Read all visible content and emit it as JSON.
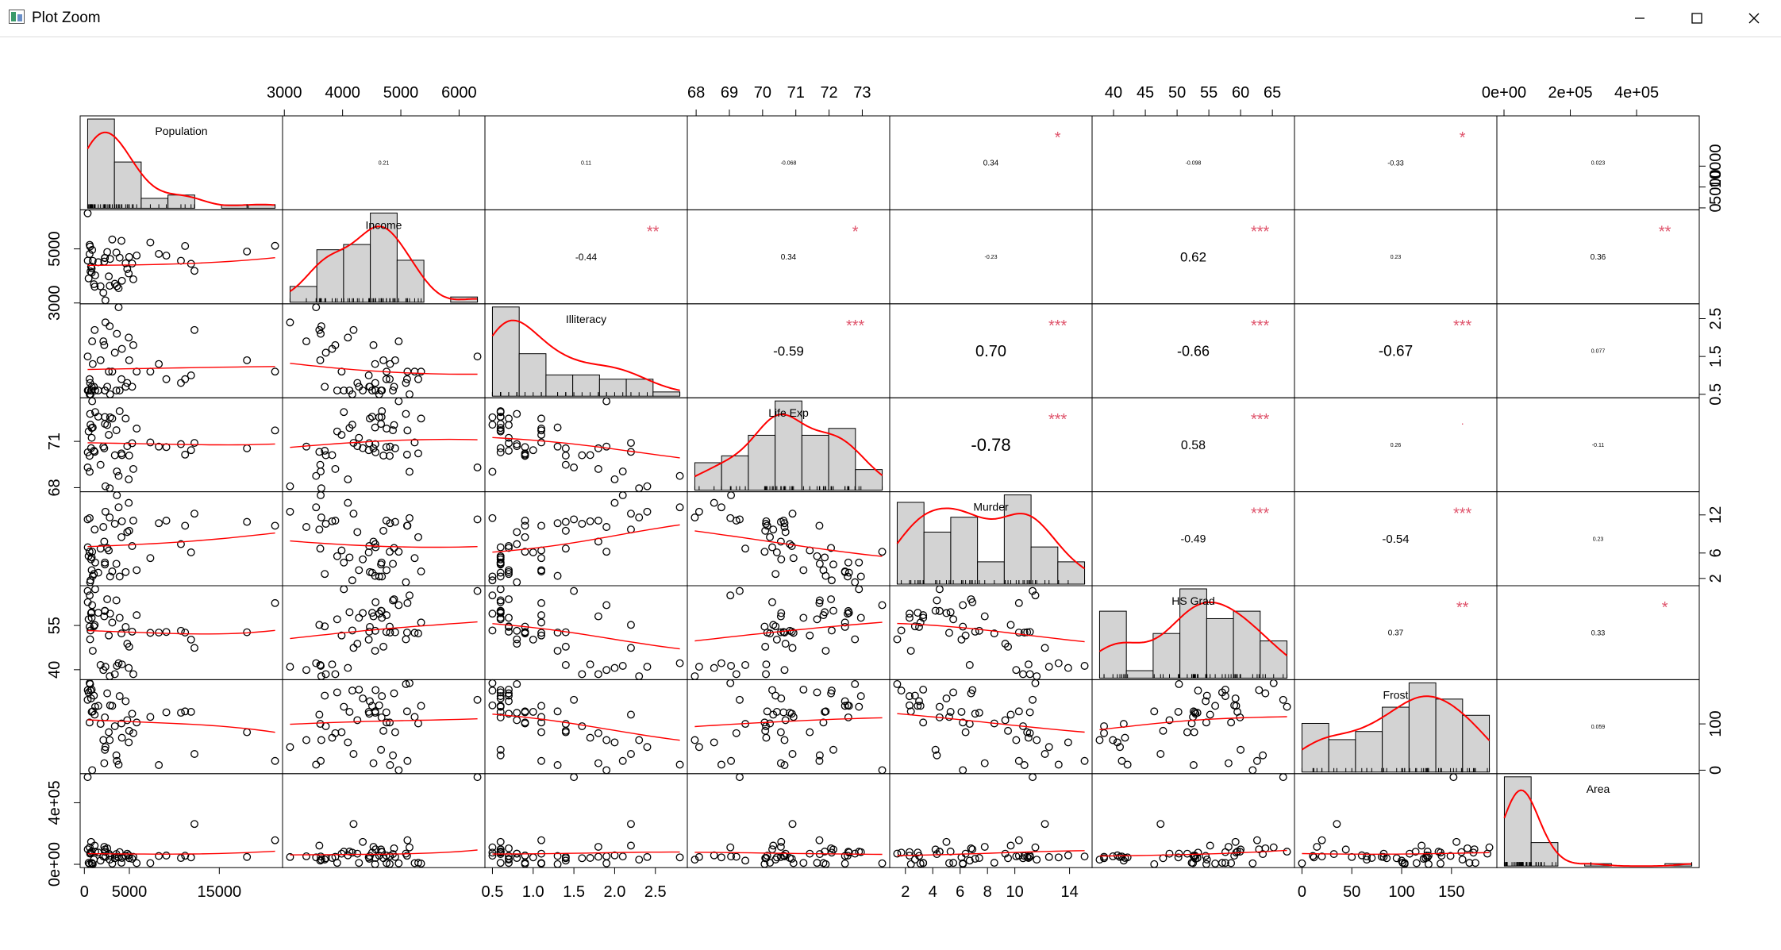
{
  "window": {
    "title": "Plot Zoom",
    "controls": [
      "minimize",
      "maximize",
      "close"
    ],
    "icons": {
      "app": "plot-zoom-app-icon",
      "minimize": "minimize-icon",
      "maximize": "maximize-icon",
      "close": "close-icon"
    }
  },
  "colors": {
    "fit": "#ff0000",
    "stars": "#df536b",
    "hist_fill": "#d3d3d3",
    "points": "#000000"
  },
  "chart_data": {
    "type": "scatter",
    "variables": [
      "Population",
      "Income",
      "Illiteracy",
      "Life Exp",
      "Murder",
      "HS Grad",
      "Frost",
      "Area"
    ],
    "diagonal_labels": [
      "Population",
      "Income",
      "Illiteracy",
      "Life Exp",
      "Murder",
      "HS Grad",
      "Frost",
      "Area"
    ],
    "ranges": [
      [
        365,
        21198
      ],
      [
        3098,
        6315
      ],
      [
        0.5,
        2.8
      ],
      [
        67.96,
        73.6
      ],
      [
        1.4,
        15.1
      ],
      [
        37.8,
        67.3
      ],
      [
        0,
        188
      ],
      [
        1049,
        566432
      ]
    ],
    "ticks": {
      "top": [
        {
          "var": 1,
          "values": [
            3000,
            4000,
            5000,
            6000
          ],
          "labels": [
            "3000",
            "4000",
            "5000",
            "6000"
          ]
        },
        {
          "var": 3,
          "values": [
            68,
            69,
            70,
            71,
            72,
            73
          ],
          "labels": [
            "68",
            "69",
            "70",
            "71",
            "72",
            "73"
          ]
        },
        {
          "var": 5,
          "values": [
            40,
            45,
            50,
            55,
            60,
            65
          ],
          "labels": [
            "40",
            "45",
            "50",
            "55",
            "60",
            "65"
          ]
        },
        {
          "var": 7,
          "values": [
            0,
            200000,
            400000
          ],
          "labels": [
            "0e+00",
            "2e+05",
            "4e+05"
          ]
        }
      ],
      "bottom": [
        {
          "var": 0,
          "values": [
            0,
            5000,
            15000
          ],
          "labels": [
            "0",
            "5000",
            "15000"
          ]
        },
        {
          "var": 2,
          "values": [
            0.5,
            1.0,
            1.5,
            2.0,
            2.5
          ],
          "labels": [
            "0.5",
            "1.0",
            "1.5",
            "2.0",
            "2.5"
          ]
        },
        {
          "var": 4,
          "values": [
            2,
            4,
            6,
            8,
            10,
            14
          ],
          "labels": [
            "2",
            "4",
            "6",
            "8",
            "10",
            "14"
          ]
        },
        {
          "var": 6,
          "values": [
            0,
            50,
            100,
            150
          ],
          "labels": [
            "0",
            "50",
            "100",
            "150"
          ]
        }
      ],
      "left": [
        {
          "var": 1,
          "values": [
            3000,
            5000
          ],
          "labels": [
            "3000",
            "5000"
          ]
        },
        {
          "var": 3,
          "values": [
            68,
            71
          ],
          "labels": [
            "68",
            "71"
          ]
        },
        {
          "var": 5,
          "values": [
            40,
            55
          ],
          "labels": [
            "40",
            "55"
          ]
        },
        {
          "var": 7,
          "values": [
            0,
            400000
          ],
          "labels": [
            "0e+00",
            "4e+05"
          ]
        }
      ],
      "right": [
        {
          "var": 0,
          "values": [
            0,
            5000,
            10000
          ],
          "labels": [
            "0",
            "5000",
            "10000"
          ]
        },
        {
          "var": 2,
          "values": [
            0.5,
            1.5,
            2.5
          ],
          "labels": [
            "0.5",
            "1.5",
            "2.5"
          ]
        },
        {
          "var": 4,
          "values": [
            2,
            6,
            12
          ],
          "labels": [
            "2",
            "6",
            "12"
          ]
        },
        {
          "var": 6,
          "values": [
            0,
            100
          ],
          "labels": [
            "0",
            "100"
          ]
        }
      ]
    },
    "correlations": [
      {
        "row": 0,
        "col": 1,
        "r": "0.21",
        "stars": ""
      },
      {
        "row": 0,
        "col": 2,
        "r": "0.11",
        "stars": ""
      },
      {
        "row": 0,
        "col": 3,
        "r": "-0.068",
        "stars": ""
      },
      {
        "row": 0,
        "col": 4,
        "r": "0.34",
        "stars": "*"
      },
      {
        "row": 0,
        "col": 5,
        "r": "-0.098",
        "stars": ""
      },
      {
        "row": 0,
        "col": 6,
        "r": "-0.33",
        "stars": "*"
      },
      {
        "row": 0,
        "col": 7,
        "r": "0.023",
        "stars": ""
      },
      {
        "row": 1,
        "col": 2,
        "r": "-0.44",
        "stars": "**"
      },
      {
        "row": 1,
        "col": 3,
        "r": "0.34",
        "stars": "*"
      },
      {
        "row": 1,
        "col": 4,
        "r": "-0.23",
        "stars": ""
      },
      {
        "row": 1,
        "col": 5,
        "r": "0.62",
        "stars": "***"
      },
      {
        "row": 1,
        "col": 6,
        "r": "0.23",
        "stars": ""
      },
      {
        "row": 1,
        "col": 7,
        "r": "0.36",
        "stars": "**"
      },
      {
        "row": 2,
        "col": 3,
        "r": "-0.59",
        "stars": "***"
      },
      {
        "row": 2,
        "col": 4,
        "r": "0.70",
        "stars": "***"
      },
      {
        "row": 2,
        "col": 5,
        "r": "-0.66",
        "stars": "***"
      },
      {
        "row": 2,
        "col": 6,
        "r": "-0.67",
        "stars": "***"
      },
      {
        "row": 2,
        "col": 7,
        "r": "0.077",
        "stars": ""
      },
      {
        "row": 3,
        "col": 4,
        "r": "-0.78",
        "stars": "***"
      },
      {
        "row": 3,
        "col": 5,
        "r": "0.58",
        "stars": "***"
      },
      {
        "row": 3,
        "col": 6,
        "r": "0.26",
        "stars": "."
      },
      {
        "row": 3,
        "col": 7,
        "r": "-0.11",
        "stars": ""
      },
      {
        "row": 4,
        "col": 5,
        "r": "-0.49",
        "stars": "***"
      },
      {
        "row": 4,
        "col": 6,
        "r": "-0.54",
        "stars": "***"
      },
      {
        "row": 4,
        "col": 7,
        "r": "0.23",
        "stars": ""
      },
      {
        "row": 5,
        "col": 6,
        "r": "0.37",
        "stars": "**"
      },
      {
        "row": 5,
        "col": 7,
        "r": "0.33",
        "stars": "*"
      },
      {
        "row": 6,
        "col": 7,
        "r": "0.059",
        "stars": ""
      }
    ],
    "observations": [
      [
        3615,
        3624,
        2.1,
        69.05,
        15.1,
        41.3,
        20,
        50708
      ],
      [
        365,
        6315,
        1.5,
        69.31,
        11.3,
        66.7,
        152,
        566432
      ],
      [
        2212,
        4530,
        1.8,
        70.55,
        7.8,
        58.1,
        15,
        113417
      ],
      [
        2110,
        3378,
        1.9,
        70.66,
        10.1,
        39.9,
        65,
        51945
      ],
      [
        21198,
        5114,
        1.1,
        71.71,
        10.3,
        62.6,
        20,
        156361
      ],
      [
        2541,
        4884,
        0.7,
        72.06,
        6.8,
        63.9,
        166,
        103766
      ],
      [
        3100,
        5348,
        1.1,
        72.48,
        3.1,
        56.0,
        139,
        4862
      ],
      [
        579,
        4809,
        0.9,
        70.06,
        6.2,
        54.6,
        103,
        1982
      ],
      [
        8277,
        4815,
        1.3,
        70.66,
        10.7,
        52.6,
        11,
        54090
      ],
      [
        4931,
        4091,
        2.0,
        68.54,
        13.9,
        40.6,
        60,
        58073
      ],
      [
        868,
        4963,
        1.9,
        73.6,
        6.2,
        61.9,
        0,
        6425
      ],
      [
        813,
        4119,
        0.6,
        71.87,
        5.3,
        59.5,
        126,
        82677
      ],
      [
        11197,
        5107,
        0.9,
        70.14,
        10.3,
        52.6,
        127,
        55748
      ],
      [
        5313,
        4458,
        0.7,
        70.88,
        7.1,
        52.9,
        122,
        36097
      ],
      [
        2861,
        4628,
        0.5,
        72.56,
        2.3,
        59.0,
        140,
        55941
      ],
      [
        2280,
        4669,
        0.6,
        72.58,
        4.5,
        59.9,
        114,
        81787
      ],
      [
        3387,
        3712,
        1.6,
        70.1,
        10.6,
        38.5,
        95,
        39650
      ],
      [
        3806,
        3545,
        2.8,
        68.76,
        13.2,
        42.2,
        12,
        44930
      ],
      [
        1058,
        3694,
        0.7,
        70.39,
        2.7,
        54.7,
        161,
        30920
      ],
      [
        4122,
        5299,
        0.9,
        70.22,
        8.5,
        52.3,
        101,
        9891
      ],
      [
        5814,
        4755,
        1.1,
        71.83,
        3.3,
        58.5,
        103,
        7826
      ],
      [
        9111,
        4751,
        0.9,
        70.63,
        11.1,
        52.8,
        125,
        56817
      ],
      [
        3921,
        4675,
        0.6,
        72.96,
        2.3,
        57.6,
        160,
        79289
      ],
      [
        2341,
        3098,
        2.4,
        68.09,
        12.5,
        41.0,
        50,
        47296
      ],
      [
        4767,
        4254,
        0.8,
        70.69,
        9.3,
        48.8,
        108,
        68995
      ],
      [
        746,
        4347,
        0.6,
        70.56,
        5.0,
        59.2,
        155,
        145587
      ],
      [
        1544,
        4508,
        0.6,
        72.6,
        2.9,
        59.3,
        139,
        76483
      ],
      [
        590,
        5149,
        0.5,
        69.03,
        11.5,
        65.2,
        188,
        109889
      ],
      [
        812,
        4281,
        0.7,
        71.23,
        3.3,
        57.6,
        174,
        9027
      ],
      [
        7333,
        5237,
        1.1,
        70.93,
        5.2,
        52.5,
        115,
        7521
      ],
      [
        1144,
        3601,
        2.2,
        70.32,
        9.7,
        55.2,
        120,
        121412
      ],
      [
        18076,
        4903,
        1.4,
        70.55,
        10.9,
        52.7,
        82,
        47831
      ],
      [
        5441,
        3875,
        1.8,
        69.21,
        11.1,
        38.5,
        80,
        48798
      ],
      [
        637,
        5087,
        0.8,
        72.78,
        1.4,
        50.3,
        186,
        69273
      ],
      [
        10735,
        4561,
        0.8,
        70.82,
        7.4,
        53.2,
        124,
        40975
      ],
      [
        2715,
        3983,
        1.1,
        71.42,
        6.4,
        51.6,
        82,
        68782
      ],
      [
        2284,
        4660,
        0.6,
        72.13,
        4.2,
        60.0,
        44,
        96184
      ],
      [
        11860,
        4449,
        1.0,
        70.43,
        6.1,
        50.2,
        126,
        44966
      ],
      [
        931,
        4558,
        1.3,
        71.9,
        2.4,
        46.4,
        127,
        1049
      ],
      [
        2816,
        3635,
        2.3,
        67.96,
        11.6,
        37.8,
        65,
        30225
      ],
      [
        681,
        4167,
        0.5,
        72.08,
        1.7,
        53.3,
        172,
        75955
      ],
      [
        4173,
        3821,
        1.7,
        70.11,
        11.0,
        41.8,
        70,
        41328
      ],
      [
        12237,
        4188,
        2.2,
        70.9,
        12.2,
        47.4,
        35,
        262134
      ],
      [
        1203,
        4022,
        0.6,
        72.9,
        4.5,
        67.3,
        137,
        82096
      ],
      [
        472,
        3907,
        0.6,
        71.64,
        5.5,
        57.1,
        168,
        9267
      ],
      [
        4981,
        4701,
        1.4,
        70.08,
        9.5,
        47.8,
        85,
        39780
      ],
      [
        3559,
        4864,
        0.6,
        71.72,
        4.3,
        63.5,
        32,
        66570
      ],
      [
        1799,
        3617,
        1.4,
        69.48,
        6.7,
        41.6,
        100,
        24070
      ],
      [
        4589,
        4468,
        0.7,
        72.48,
        3.0,
        54.5,
        149,
        54464
      ],
      [
        376,
        4566,
        0.6,
        70.29,
        6.9,
        62.9,
        173,
        97203
      ]
    ],
    "title": "",
    "xlabel": "",
    "ylabel": "",
    "diagonal": "histogram with density curve and rug",
    "lower": "scatter with smooth fit line",
    "upper": "correlation coefficient with significance stars",
    "grid": false
  }
}
